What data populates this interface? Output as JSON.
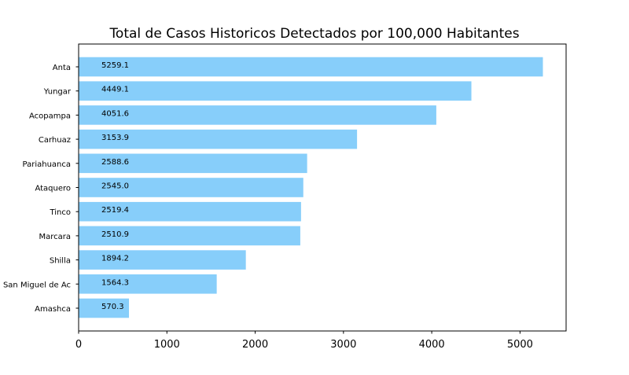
{
  "chart_data": {
    "type": "bar",
    "orientation": "horizontal",
    "title": "Total de Casos Historicos Detectados por 100,000 Habitantes",
    "xlabel": "",
    "ylabel": "",
    "categories": [
      "Anta",
      "Yungar",
      "Acopampa",
      "Carhuaz",
      "Pariahuanca",
      "Ataquero",
      "Tinco",
      "Marcara",
      "Shilla",
      "San Miguel de Ac",
      "Amashca"
    ],
    "values": [
      5259.1,
      4449.1,
      4051.6,
      3153.9,
      2588.6,
      2545.0,
      2519.4,
      2510.9,
      1894.2,
      1564.3,
      570.3
    ],
    "value_labels": [
      "5259.1",
      "4449.1",
      "4051.6",
      "3153.9",
      "2588.6",
      "2545.0",
      "2519.4",
      "2510.9",
      "1894.2",
      "1564.3",
      "570.3"
    ],
    "xticks": [
      0,
      1000,
      2000,
      3000,
      4000,
      5000
    ],
    "xtick_labels": [
      "0",
      "1000",
      "2000",
      "3000",
      "4000",
      "5000"
    ],
    "xlim": [
      0,
      5522
    ],
    "grid": false,
    "bar_color": "#87CEFA"
  }
}
